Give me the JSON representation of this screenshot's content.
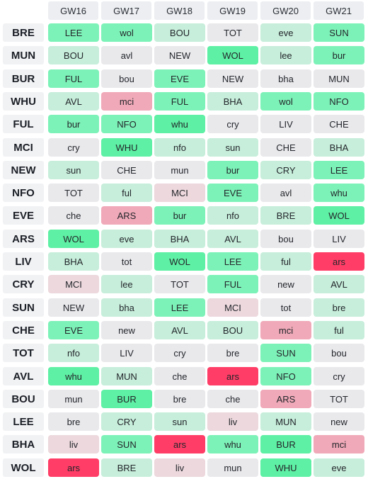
{
  "gameweeks": [
    "GW16",
    "GW17",
    "GW18",
    "GW19",
    "GW20",
    "GW21"
  ],
  "difficulty_colors": {
    "1": "#5ef0a4",
    "2": "#7df2b8",
    "3": "#c7eedb",
    "4": "#e9e9ec",
    "5": "#ecd8dd",
    "6": "#f0a9b8",
    "7": "#ff3d66"
  },
  "teams": [
    {
      "code": "BRE",
      "fixtures": [
        {
          "t": "LEE",
          "d": 2
        },
        {
          "t": "wol",
          "d": 2
        },
        {
          "t": "BOU",
          "d": 3
        },
        {
          "t": "TOT",
          "d": 4
        },
        {
          "t": "eve",
          "d": 3
        },
        {
          "t": "SUN",
          "d": 2
        }
      ]
    },
    {
      "code": "MUN",
      "fixtures": [
        {
          "t": "BOU",
          "d": 3
        },
        {
          "t": "avl",
          "d": 4
        },
        {
          "t": "NEW",
          "d": 4
        },
        {
          "t": "WOL",
          "d": 1
        },
        {
          "t": "lee",
          "d": 3
        },
        {
          "t": "bur",
          "d": 2
        }
      ]
    },
    {
      "code": "BUR",
      "fixtures": [
        {
          "t": "FUL",
          "d": 2
        },
        {
          "t": "bou",
          "d": 4
        },
        {
          "t": "EVE",
          "d": 2
        },
        {
          "t": "NEW",
          "d": 4
        },
        {
          "t": "bha",
          "d": 4
        },
        {
          "t": "MUN",
          "d": 4
        }
      ]
    },
    {
      "code": "WHU",
      "fixtures": [
        {
          "t": "AVL",
          "d": 3
        },
        {
          "t": "mci",
          "d": 6
        },
        {
          "t": "FUL",
          "d": 2
        },
        {
          "t": "BHA",
          "d": 3
        },
        {
          "t": "wol",
          "d": 2
        },
        {
          "t": "NFO",
          "d": 2
        }
      ]
    },
    {
      "code": "FUL",
      "fixtures": [
        {
          "t": "bur",
          "d": 2
        },
        {
          "t": "NFO",
          "d": 2
        },
        {
          "t": "whu",
          "d": 1
        },
        {
          "t": "cry",
          "d": 4
        },
        {
          "t": "LIV",
          "d": 4
        },
        {
          "t": "CHE",
          "d": 4
        }
      ]
    },
    {
      "code": "MCI",
      "fixtures": [
        {
          "t": "cry",
          "d": 4
        },
        {
          "t": "WHU",
          "d": 1
        },
        {
          "t": "nfo",
          "d": 3
        },
        {
          "t": "sun",
          "d": 3
        },
        {
          "t": "CHE",
          "d": 4
        },
        {
          "t": "BHA",
          "d": 3
        }
      ]
    },
    {
      "code": "NEW",
      "fixtures": [
        {
          "t": "sun",
          "d": 3
        },
        {
          "t": "CHE",
          "d": 4
        },
        {
          "t": "mun",
          "d": 4
        },
        {
          "t": "bur",
          "d": 2
        },
        {
          "t": "CRY",
          "d": 3
        },
        {
          "t": "LEE",
          "d": 2
        }
      ]
    },
    {
      "code": "NFO",
      "fixtures": [
        {
          "t": "TOT",
          "d": 4
        },
        {
          "t": "ful",
          "d": 3
        },
        {
          "t": "MCI",
          "d": 5
        },
        {
          "t": "EVE",
          "d": 2
        },
        {
          "t": "avl",
          "d": 4
        },
        {
          "t": "whu",
          "d": 2
        }
      ]
    },
    {
      "code": "EVE",
      "fixtures": [
        {
          "t": "che",
          "d": 4
        },
        {
          "t": "ARS",
          "d": 6
        },
        {
          "t": "bur",
          "d": 2
        },
        {
          "t": "nfo",
          "d": 3
        },
        {
          "t": "BRE",
          "d": 3
        },
        {
          "t": "WOL",
          "d": 1
        }
      ]
    },
    {
      "code": "ARS",
      "fixtures": [
        {
          "t": "WOL",
          "d": 1
        },
        {
          "t": "eve",
          "d": 3
        },
        {
          "t": "BHA",
          "d": 3
        },
        {
          "t": "AVL",
          "d": 3
        },
        {
          "t": "bou",
          "d": 4
        },
        {
          "t": "LIV",
          "d": 4
        }
      ]
    },
    {
      "code": "LIV",
      "fixtures": [
        {
          "t": "BHA",
          "d": 3
        },
        {
          "t": "tot",
          "d": 4
        },
        {
          "t": "WOL",
          "d": 1
        },
        {
          "t": "LEE",
          "d": 2
        },
        {
          "t": "ful",
          "d": 3
        },
        {
          "t": "ars",
          "d": 7
        }
      ]
    },
    {
      "code": "CRY",
      "fixtures": [
        {
          "t": "MCI",
          "d": 5
        },
        {
          "t": "lee",
          "d": 3
        },
        {
          "t": "TOT",
          "d": 4
        },
        {
          "t": "FUL",
          "d": 2
        },
        {
          "t": "new",
          "d": 4
        },
        {
          "t": "AVL",
          "d": 3
        }
      ]
    },
    {
      "code": "SUN",
      "fixtures": [
        {
          "t": "NEW",
          "d": 4
        },
        {
          "t": "bha",
          "d": 3
        },
        {
          "t": "LEE",
          "d": 2
        },
        {
          "t": "MCI",
          "d": 5
        },
        {
          "t": "tot",
          "d": 4
        },
        {
          "t": "bre",
          "d": 3
        }
      ]
    },
    {
      "code": "CHE",
      "fixtures": [
        {
          "t": "EVE",
          "d": 2
        },
        {
          "t": "new",
          "d": 4
        },
        {
          "t": "AVL",
          "d": 3
        },
        {
          "t": "BOU",
          "d": 3
        },
        {
          "t": "mci",
          "d": 6
        },
        {
          "t": "ful",
          "d": 3
        }
      ]
    },
    {
      "code": "TOT",
      "fixtures": [
        {
          "t": "nfo",
          "d": 3
        },
        {
          "t": "LIV",
          "d": 4
        },
        {
          "t": "cry",
          "d": 4
        },
        {
          "t": "bre",
          "d": 4
        },
        {
          "t": "SUN",
          "d": 2
        },
        {
          "t": "bou",
          "d": 4
        }
      ]
    },
    {
      "code": "AVL",
      "fixtures": [
        {
          "t": "whu",
          "d": 1
        },
        {
          "t": "MUN",
          "d": 3
        },
        {
          "t": "che",
          "d": 4
        },
        {
          "t": "ars",
          "d": 7
        },
        {
          "t": "NFO",
          "d": 2
        },
        {
          "t": "cry",
          "d": 4
        }
      ]
    },
    {
      "code": "BOU",
      "fixtures": [
        {
          "t": "mun",
          "d": 4
        },
        {
          "t": "BUR",
          "d": 1
        },
        {
          "t": "bre",
          "d": 4
        },
        {
          "t": "che",
          "d": 4
        },
        {
          "t": "ARS",
          "d": 6
        },
        {
          "t": "TOT",
          "d": 4
        }
      ]
    },
    {
      "code": "LEE",
      "fixtures": [
        {
          "t": "bre",
          "d": 4
        },
        {
          "t": "CRY",
          "d": 3
        },
        {
          "t": "sun",
          "d": 3
        },
        {
          "t": "liv",
          "d": 5
        },
        {
          "t": "MUN",
          "d": 3
        },
        {
          "t": "new",
          "d": 4
        }
      ]
    },
    {
      "code": "BHA",
      "fixtures": [
        {
          "t": "liv",
          "d": 5
        },
        {
          "t": "SUN",
          "d": 2
        },
        {
          "t": "ars",
          "d": 7
        },
        {
          "t": "whu",
          "d": 2
        },
        {
          "t": "BUR",
          "d": 1
        },
        {
          "t": "mci",
          "d": 6
        }
      ]
    },
    {
      "code": "WOL",
      "fixtures": [
        {
          "t": "ars",
          "d": 7
        },
        {
          "t": "BRE",
          "d": 3
        },
        {
          "t": "liv",
          "d": 5
        },
        {
          "t": "mun",
          "d": 4
        },
        {
          "t": "WHU",
          "d": 1
        },
        {
          "t": "eve",
          "d": 3
        }
      ]
    }
  ]
}
